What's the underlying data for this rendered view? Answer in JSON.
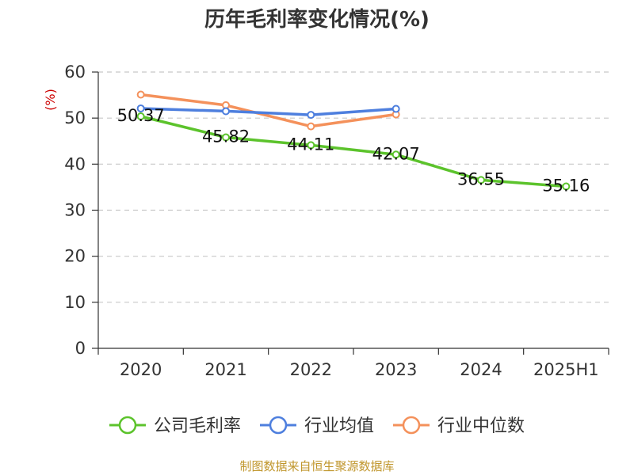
{
  "chart_data": {
    "type": "line",
    "title": "历年毛利率变化情况(%)",
    "ylabel": "(%)",
    "xlabel": "",
    "categories": [
      "2020",
      "2021",
      "2022",
      "2023",
      "2024",
      "2025H1"
    ],
    "ylim": [
      0,
      60
    ],
    "yticks": [
      0,
      10,
      20,
      30,
      40,
      50,
      60
    ],
    "grid": true,
    "legend_position": "bottom",
    "series": [
      {
        "name": "公司毛利率",
        "color": "#5cc32c",
        "values": [
          50.37,
          45.82,
          44.11,
          42.07,
          36.55,
          35.16
        ],
        "labels": [
          "50.37",
          "45.82",
          "44.11",
          "42.07",
          "36.55",
          "35.16"
        ]
      },
      {
        "name": "行业均值",
        "color": "#4e7fde",
        "values": [
          52.1,
          51.5,
          50.7,
          52.0,
          null,
          null
        ]
      },
      {
        "name": "行业中位数",
        "color": "#f4915b",
        "values": [
          55.1,
          52.8,
          48.2,
          50.8,
          null,
          null
        ]
      }
    ]
  },
  "footer": {
    "source": "制图数据来自恒生聚源数据库"
  }
}
